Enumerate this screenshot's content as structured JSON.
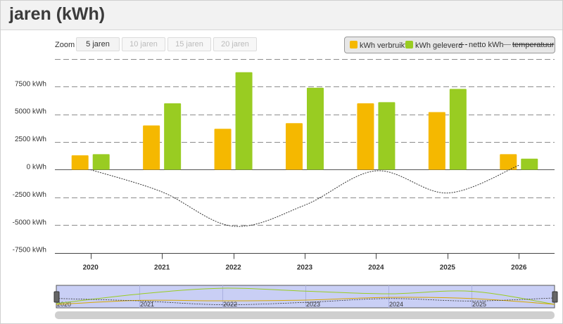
{
  "header": {
    "title": "jaren (kWh)"
  },
  "zoom": {
    "label": "Zoom",
    "buttons": [
      "5 jaren",
      "10 jaren",
      "15 jaren",
      "20 jaren"
    ],
    "active_index": 0
  },
  "legend": {
    "items": [
      {
        "label": "kWh verbruikt",
        "color": "#f5b800"
      },
      {
        "label": "kWh geleverd",
        "color": "#99cc22"
      },
      {
        "label": "netto kWh",
        "color": "#333333"
      },
      {
        "label": "temperatuur",
        "color": "#333333",
        "hidden": true
      }
    ]
  },
  "chart_data": {
    "type": "bar",
    "categories": [
      "2020",
      "2021",
      "2022",
      "2023",
      "2024",
      "2025",
      "2026"
    ],
    "series": [
      {
        "name": "kWh verbruikt",
        "type": "bar",
        "color": "#f5b800",
        "values": [
          1300,
          4000,
          3700,
          4200,
          6000,
          5200,
          1400
        ]
      },
      {
        "name": "kWh geleverd",
        "type": "bar",
        "color": "#99cc22",
        "values": [
          1400,
          6000,
          8800,
          7400,
          6100,
          7300,
          1000
        ]
      },
      {
        "name": "netto kWh",
        "type": "line",
        "color": "#333333",
        "values": [
          0,
          -2000,
          -5100,
          -3200,
          -100,
          -2100,
          400
        ]
      }
    ],
    "yticks": [
      -7500,
      -5000,
      -2500,
      0,
      2500,
      5000,
      7500
    ],
    "ytick_labels": [
      "-7500 kWh",
      "-5000 kWh",
      "-2500 kWh",
      "0 kWh",
      "2500 kWh",
      "5000 kWh",
      "7500 kWh"
    ],
    "ylim": [
      -7500,
      10000
    ],
    "grid": true,
    "legend_position": "top-right"
  },
  "navigator": {
    "labels": [
      "2020",
      "2021",
      "2022",
      "2023",
      "2024",
      "2025"
    ]
  }
}
